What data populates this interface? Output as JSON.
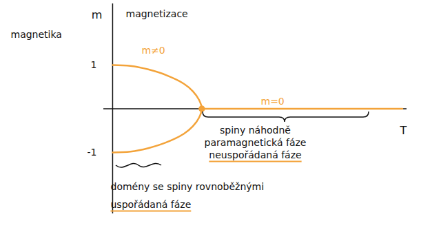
{
  "chart_data": {
    "type": "line",
    "xlabel": "T",
    "ylabel": "m",
    "xlim": [
      -0.1,
      3.3
    ],
    "ylim": [
      -2.4,
      2.4
    ],
    "xticks": [],
    "yticks": [
      1,
      -1
    ],
    "tick_labels": "y",
    "series": [
      {
        "name": "m≠0",
        "color": "#f3a33a",
        "x": [
          0,
          0.2,
          0.4,
          0.6,
          0.8,
          0.9,
          0.97,
          1,
          0.97,
          0.9,
          0.8,
          0.6,
          0.4,
          0.2,
          0
        ],
        "values": [
          1,
          0.98,
          0.9,
          0.77,
          0.57,
          0.4,
          0.2,
          0,
          -0.2,
          -0.4,
          -0.57,
          -0.77,
          -0.9,
          -0.98,
          -1
        ]
      },
      {
        "name": "m=0",
        "color": "#f3a33a",
        "x": [
          1,
          3.25
        ],
        "values": [
          0,
          0
        ]
      }
    ],
    "annotations": [
      "magnetika",
      "magnetizace",
      "spiny náhodně",
      "paramagnetická fáze",
      "neuspořádaná fáze",
      "domény se spiny rovnoběžnými",
      "uspořádaná fáze"
    ]
  }
}
